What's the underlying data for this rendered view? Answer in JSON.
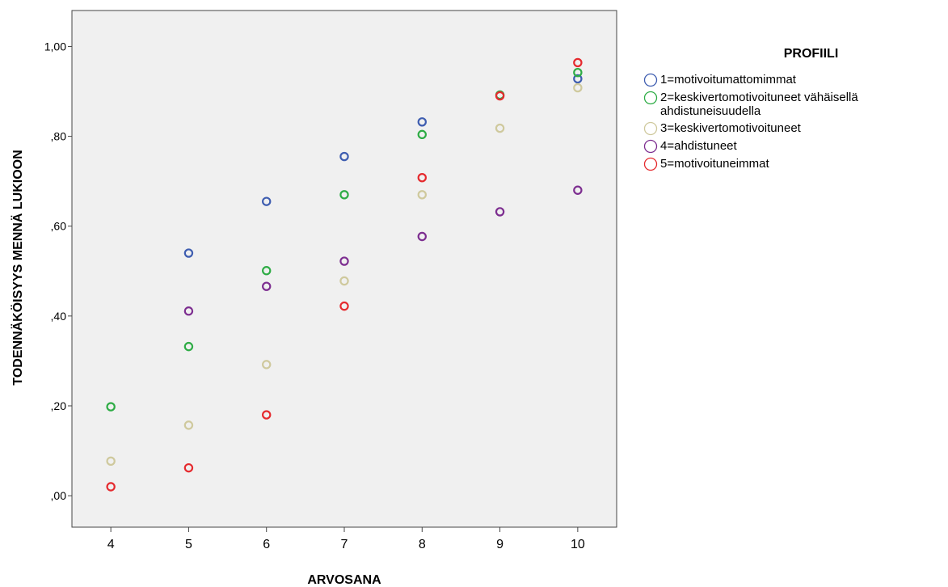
{
  "chart_data": {
    "type": "scatter",
    "title": "",
    "xlabel": "ARVOSANA",
    "ylabel": "TODENNÄKÖISYYS MENNÄ LUKIOON",
    "xlim": [
      3.5,
      10.5
    ],
    "ylim": [
      -0.07,
      1.08
    ],
    "x_ticks": [
      4,
      5,
      6,
      7,
      8,
      9,
      10
    ],
    "x_tick_labels": [
      "4",
      "5",
      "6",
      "7",
      "8",
      "9",
      "10"
    ],
    "y_ticks": [
      0,
      0.2,
      0.4,
      0.6,
      0.8,
      1.0
    ],
    "y_tick_labels": [
      ",00",
      ",20",
      ",40",
      ",60",
      ",80",
      "1,00"
    ],
    "grid": false,
    "legend_title": "PROFIILI",
    "legend_position": "right",
    "series": [
      {
        "name": "1=motivoitumattomimmat",
        "color": "#3e5db0",
        "x": [
          5,
          6,
          7,
          8,
          10
        ],
        "y": [
          0.54,
          0.655,
          0.755,
          0.832,
          0.928
        ]
      },
      {
        "name": "2=keskivertomotivoituneet vähäisellä\nahdistuneisuudella",
        "color": "#2eac45",
        "x": [
          4,
          5,
          6,
          7,
          8,
          9,
          10
        ],
        "y": [
          0.198,
          0.332,
          0.501,
          0.67,
          0.804,
          0.892,
          0.942
        ]
      },
      {
        "name": "3=keskivertomotivoituneet",
        "color": "#cfc99d",
        "x": [
          4,
          5,
          6,
          7,
          8,
          9,
          10
        ],
        "y": [
          0.077,
          0.157,
          0.292,
          0.478,
          0.67,
          0.818,
          0.908
        ]
      },
      {
        "name": "4=ahdistuneet",
        "color": "#7d2e90",
        "x": [
          5,
          6,
          7,
          8,
          9,
          10
        ],
        "y": [
          0.411,
          0.466,
          0.522,
          0.577,
          0.632,
          0.68
        ]
      },
      {
        "name": "5=motivoituneimmat",
        "color": "#e52a2e",
        "x": [
          4,
          5,
          6,
          7,
          8,
          9,
          10
        ],
        "y": [
          0.02,
          0.062,
          0.18,
          0.422,
          0.708,
          0.89,
          0.964
        ]
      }
    ]
  }
}
